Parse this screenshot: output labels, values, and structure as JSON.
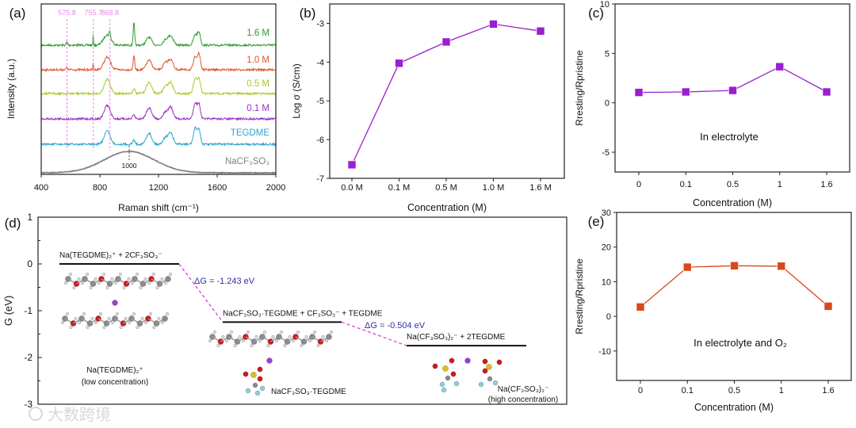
{
  "chart_data": [
    {
      "panel": "(a)",
      "type": "line",
      "xlabel": "Raman shift (cm⁻¹)",
      "ylabel": "Intensity (a.u.)",
      "xlim": [
        400,
        2000
      ],
      "xticks": [
        "400",
        "800",
        "1200",
        "1600",
        "2000"
      ],
      "reference_lines": [
        {
          "value": 575.8,
          "label": "575.8"
        },
        {
          "value": 755.7,
          "label": "755.7"
        },
        {
          "value": 868.8,
          "label": "868.8"
        }
      ],
      "peak_marker": {
        "value": 1000,
        "label": "1000"
      },
      "reference_color": "#e48ae8",
      "series": [
        {
          "name": "1.6 M",
          "color": "#2f9a32",
          "peaks": [
            [
              575,
              4,
              5
            ],
            [
              755,
              14,
              2
            ],
            [
              850,
              13,
              25
            ],
            [
              868,
              9,
              4
            ],
            [
              1032,
              28,
              5
            ],
            [
              1135,
              10,
              18
            ],
            [
              1245,
              6,
              15
            ],
            [
              1282,
              12,
              18
            ],
            [
              1450,
              13,
              12
            ],
            [
              1476,
              16,
              10
            ]
          ]
        },
        {
          "name": "1.0 M",
          "color": "#e0542a",
          "peaks": [
            [
              575,
              3,
              5
            ],
            [
              755,
              9,
              2
            ],
            [
              850,
              16,
              22
            ],
            [
              1032,
              18,
              5
            ],
            [
              1135,
              12,
              18
            ],
            [
              1245,
              8,
              15
            ],
            [
              1282,
              13,
              17
            ],
            [
              1450,
              16,
              12
            ],
            [
              1476,
              19,
              10
            ]
          ]
        },
        {
          "name": "0.5 M",
          "color": "#a9c92c",
          "peaks": [
            [
              850,
              18,
              20
            ],
            [
              1032,
              6,
              8
            ],
            [
              1135,
              14,
              18
            ],
            [
              1245,
              8,
              15
            ],
            [
              1282,
              14,
              17
            ],
            [
              1450,
              18,
              12
            ],
            [
              1476,
              18,
              10
            ]
          ]
        },
        {
          "name": "0.1 M",
          "color": "#9a2fc2",
          "peaks": [
            [
              850,
              17,
              20
            ],
            [
              1032,
              5,
              8
            ],
            [
              1135,
              14,
              18
            ],
            [
              1245,
              8,
              15
            ],
            [
              1282,
              15,
              16
            ],
            [
              1450,
              20,
              12
            ],
            [
              1476,
              18,
              10
            ]
          ]
        },
        {
          "name": "TEGDME",
          "color": "#2aa7cc",
          "peaks": [
            [
              850,
              17,
              20
            ],
            [
              1032,
              5,
              8
            ],
            [
              1135,
              14,
              18
            ],
            [
              1245,
              8,
              15
            ],
            [
              1282,
              15,
              16
            ],
            [
              1450,
              20,
              12
            ],
            [
              1476,
              18,
              10
            ]
          ]
        },
        {
          "name": "NaCF₃SO₃",
          "color": "#808080",
          "peaks": [
            [
              1000,
              27,
              170
            ]
          ]
        }
      ]
    },
    {
      "panel": "(b)",
      "type": "line",
      "xlabel": "Concentration (M)",
      "ylabel": "Log σ (S/cm)",
      "categories": [
        "0.0 M",
        "0.1 M",
        "0.5 M",
        "1.0 M",
        "1.6 M"
      ],
      "values": [
        -6.65,
        -4.03,
        -3.48,
        -3.02,
        -3.2
      ],
      "ylim": [
        -7,
        -2.5
      ],
      "yticks": [
        "-7",
        "-6",
        "-5",
        "-4",
        "-3"
      ],
      "color": "#9a1fd0"
    },
    {
      "panel": "(c)",
      "type": "line",
      "xlabel": "Concentration (M)",
      "ylabel": "Rresting/Rpristine",
      "categories": [
        "0",
        "0.1",
        "0.5",
        "1",
        "1.6"
      ],
      "values": [
        1.05,
        1.1,
        1.25,
        3.65,
        1.1
      ],
      "ylim": [
        -7,
        10
      ],
      "yticks": [
        "-5",
        "0",
        "5",
        "10"
      ],
      "annotation": "In electrolyte",
      "color": "#9a1fd0"
    },
    {
      "panel": "(d)",
      "type": "diagram",
      "ylabel": "G (eV)",
      "ylim": [
        -3,
        1
      ],
      "yticks": [
        "1",
        "0",
        "-1",
        "-2",
        "-3"
      ],
      "levels": [
        {
          "G": 0,
          "label": "Na(TEGDME)₂⁺ + 2CF₃SO₃⁻",
          "structure_label": "Na(TEGDME)₂⁺",
          "structure_note": "(low concentration)"
        },
        {
          "G": -1.243,
          "label": "NaCF₃SO₃·TEGDME + CF₃SO₃⁻ + TEGDME",
          "structure_label": "NaCF₃SO₃·TEGDME",
          "structure_note": ""
        },
        {
          "G": -1.747,
          "label": "Na(CF₃SO₃)₂⁻ + 2TEGDME",
          "structure_label": "Na(CF₃SO₃)₂⁻",
          "structure_note": "(high concentration)"
        }
      ],
      "transitions": [
        {
          "label": "ΔG = -1.243 eV"
        },
        {
          "label": "ΔG = -0.504 eV"
        }
      ],
      "connector_color": "#e040e0",
      "dg_color": "#3030a0"
    },
    {
      "panel": "(e)",
      "type": "line",
      "xlabel": "Concentration (M)",
      "ylabel": "Rresting/Rpristine",
      "categories": [
        "0",
        "0.1",
        "0.5",
        "1",
        "1.6"
      ],
      "values": [
        2.7,
        14.2,
        14.6,
        14.5,
        2.9
      ],
      "ylim": [
        -18.5,
        30
      ],
      "yticks": [
        "-10",
        "0",
        "10",
        "20",
        "30"
      ],
      "annotation": "In electrolyte and O₂",
      "color": "#d8481c"
    }
  ],
  "watermark": "大数跨境"
}
